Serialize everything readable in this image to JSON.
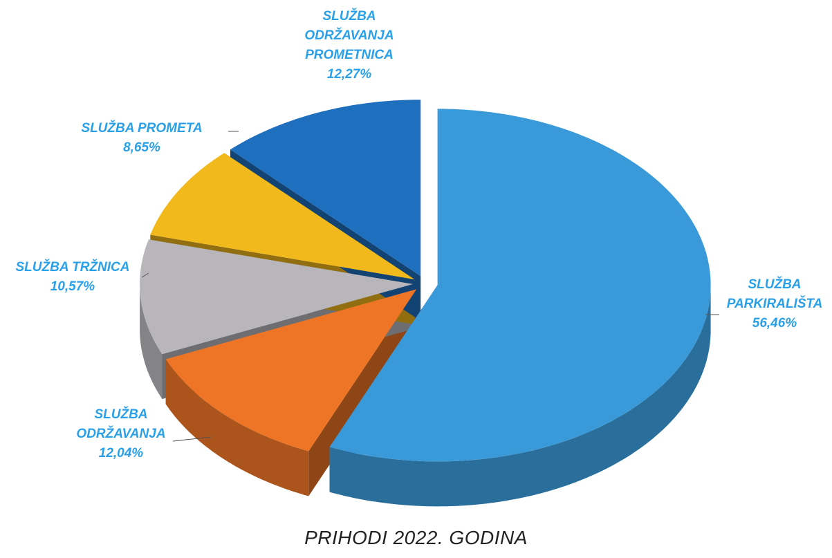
{
  "chart_data": {
    "type": "pie",
    "title": "PRIHODI 2022. GODINA",
    "categories": [
      "SLUŽBA PARKIRALIŠTA",
      "SLUŽBA ODRŽAVANJA",
      "SLUŽBA TRŽNICA",
      "SLUŽBA PROMETA",
      "SLUŽBA ODRŽAVANJA PROMETNICA"
    ],
    "values": [
      56.46,
      12.04,
      10.57,
      8.65,
      12.27
    ],
    "value_labels": [
      "56,46%",
      "12,04%",
      "10,57%",
      "8,65%",
      "12,27%"
    ],
    "colors": [
      "#3a9ad9",
      "#ee7526",
      "#b8b6bb",
      "#f2b91c",
      "#1f6fbf"
    ]
  }
}
